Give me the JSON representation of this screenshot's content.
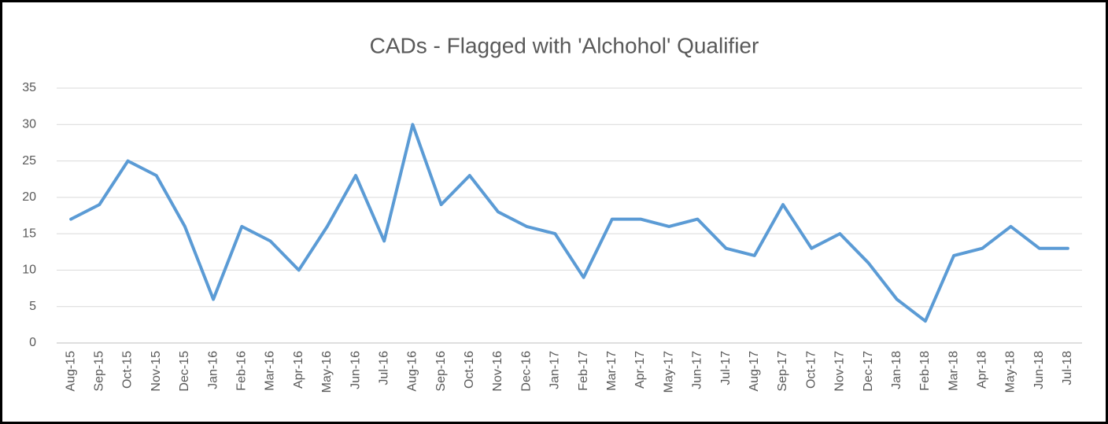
{
  "chart_data": {
    "type": "line",
    "title": "CADs - Flagged with 'Alchohol' Qualifier",
    "categories": [
      "Aug-15",
      "Sep-15",
      "Oct-15",
      "Nov-15",
      "Dec-15",
      "Jan-16",
      "Feb-16",
      "Mar-16",
      "Apr-16",
      "May-16",
      "Jun-16",
      "Jul-16",
      "Aug-16",
      "Sep-16",
      "Oct-16",
      "Nov-16",
      "Dec-16",
      "Jan-17",
      "Feb-17",
      "Mar-17",
      "Apr-17",
      "May-17",
      "Jun-17",
      "Jul-17",
      "Aug-17",
      "Sep-17",
      "Oct-17",
      "Nov-17",
      "Dec-17",
      "Jan-18",
      "Feb-18",
      "Mar-18",
      "Apr-18",
      "May-18",
      "Jun-18",
      "Jul-18"
    ],
    "values": [
      17,
      19,
      25,
      23,
      16,
      6,
      16,
      14,
      10,
      16,
      23,
      14,
      30,
      19,
      23,
      18,
      16,
      15,
      9,
      17,
      17,
      16,
      17,
      13,
      12,
      19,
      13,
      15,
      11,
      6,
      3,
      12,
      13,
      16,
      13,
      13
    ],
    "color": "#5b9bd5",
    "ylim": [
      0,
      35
    ],
    "yticks": [
      0,
      5,
      10,
      15,
      20,
      25,
      30,
      35
    ],
    "grid": true
  }
}
